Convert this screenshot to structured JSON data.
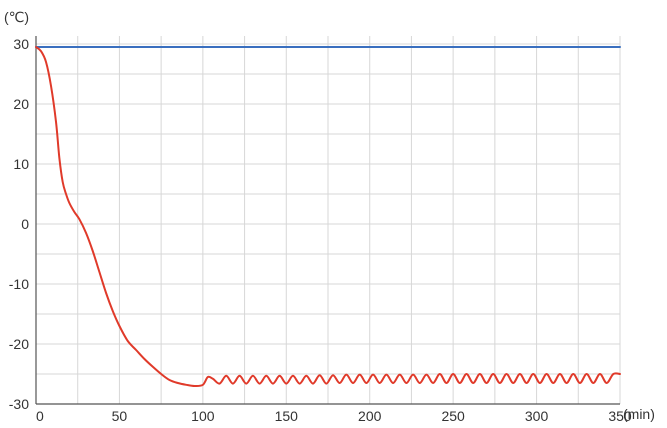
{
  "chart_data": {
    "type": "line",
    "title": "",
    "xlabel": "",
    "ylabel": "",
    "x_unit": "(min)",
    "y_unit": "(℃)",
    "xlim": [
      0,
      350
    ],
    "ylim": [
      -30,
      30
    ],
    "x_ticks": [
      0,
      50,
      100,
      150,
      200,
      250,
      300,
      350
    ],
    "x_tick_labels": [
      "0",
      "50",
      "100",
      "150",
      "200",
      "250",
      "300",
      "350"
    ],
    "y_ticks": [
      30,
      20,
      10,
      0,
      -10,
      -20,
      -30
    ],
    "y_tick_labels": [
      "30",
      "20",
      "10",
      "0",
      "-10",
      "-20",
      "-30"
    ],
    "grid": true,
    "grid_minor_x_step": 25,
    "grid_minor_y_step": 5,
    "series": [
      {
        "color": "#3a6fbf",
        "x": [
          0,
          350
        ],
        "y": [
          29.5,
          29.5
        ]
      },
      {
        "color": "#e03a2a",
        "x": [
          0,
          3,
          6,
          9,
          12,
          14,
          16,
          18,
          20,
          23,
          26,
          30,
          34,
          38,
          42,
          46,
          50,
          55,
          60,
          65,
          70,
          75,
          80,
          85,
          90,
          95,
          100,
          103,
          106,
          110,
          114,
          118,
          122,
          126,
          130,
          134,
          138,
          142,
          146,
          150,
          154,
          158,
          162,
          166,
          170,
          174,
          178,
          182,
          186,
          190,
          194,
          198,
          202,
          206,
          210,
          214,
          218,
          222,
          226,
          230,
          234,
          238,
          242,
          246,
          250,
          254,
          258,
          262,
          266,
          270,
          274,
          278,
          282,
          286,
          290,
          294,
          298,
          302,
          306,
          310,
          314,
          318,
          322,
          326,
          330,
          334,
          338,
          342,
          346,
          350
        ],
        "y": [
          29.5,
          28.8,
          27,
          23,
          17,
          11,
          7,
          5,
          3.5,
          2,
          0.8,
          -1.5,
          -4.5,
          -8,
          -11.5,
          -14.5,
          -17,
          -19.5,
          -21,
          -22.5,
          -23.8,
          -25,
          -26,
          -26.5,
          -26.8,
          -27,
          -26.8,
          -25.5,
          -25.8,
          -26.6,
          -25.3,
          -26.6,
          -25.3,
          -26.6,
          -25.3,
          -26.6,
          -25.3,
          -26.6,
          -25.3,
          -26.6,
          -25.3,
          -26.6,
          -25.3,
          -26.6,
          -25.2,
          -26.6,
          -25.2,
          -26.5,
          -25.1,
          -26.5,
          -25.1,
          -26.5,
          -25.1,
          -26.5,
          -25.1,
          -26.5,
          -25.1,
          -26.5,
          -25.1,
          -26.5,
          -25.1,
          -26.5,
          -25.0,
          -26.5,
          -25.0,
          -26.5,
          -25.0,
          -26.5,
          -25.0,
          -26.5,
          -25.0,
          -26.5,
          -25.0,
          -26.5,
          -25.0,
          -26.5,
          -25.0,
          -26.5,
          -25.0,
          -26.5,
          -25.0,
          -26.5,
          -25.0,
          -26.5,
          -25.0,
          -26.5,
          -25.0,
          -26.5,
          -25.0,
          -25.0
        ]
      }
    ]
  }
}
